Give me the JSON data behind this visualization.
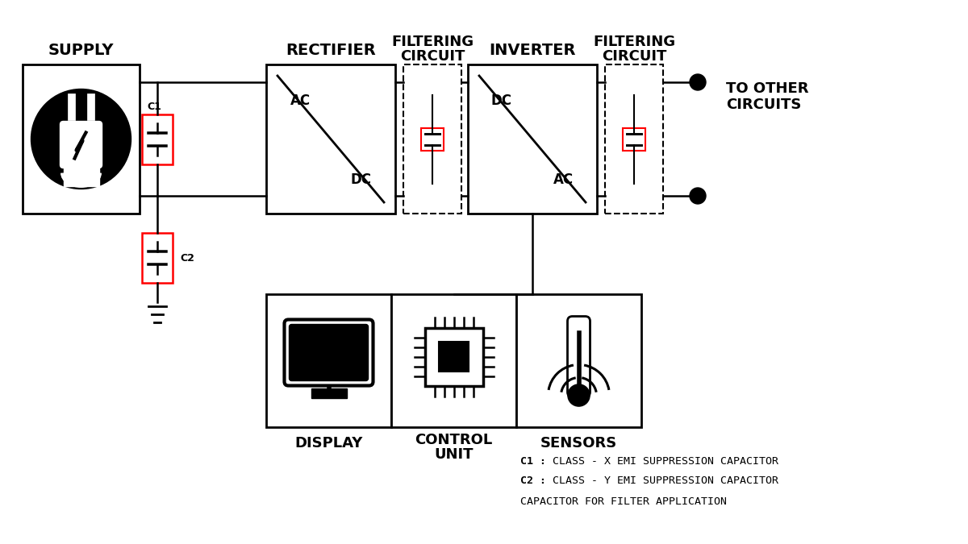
{
  "bg_color": "#ffffff",
  "line_color": "#000000",
  "red_color": "#cc0000",
  "labels": {
    "supply": "SUPPLY",
    "rectifier": "RECTIFIER",
    "filter1_line1": "FILTERING",
    "filter1_line2": "CIRCUIT",
    "inverter": "INVERTER",
    "filter2_line1": "FILTERING",
    "filter2_line2": "CIRCUIT",
    "to_other_line1": "TO OTHER",
    "to_other_line2": "CIRCUITS",
    "display": "DISPLAY",
    "control_line1": "CONTROL",
    "control_line2": "UNIT",
    "sensors": "SENSORS",
    "c1": "C1",
    "c2": "C2",
    "ac1": "AC",
    "dc1": "DC",
    "dc2": "DC",
    "ac2": "AC",
    "legend1_bold": "C1 :",
    "legend1_rest": " CLASS - X EMI SUPPRESSION CAPACITOR",
    "legend2_bold": "C2 :",
    "legend2_rest": " CLASS - Y EMI SUPPRESSION CAPACITOR",
    "legend3": "CAPACITOR FOR FILTER APPLICATION"
  }
}
